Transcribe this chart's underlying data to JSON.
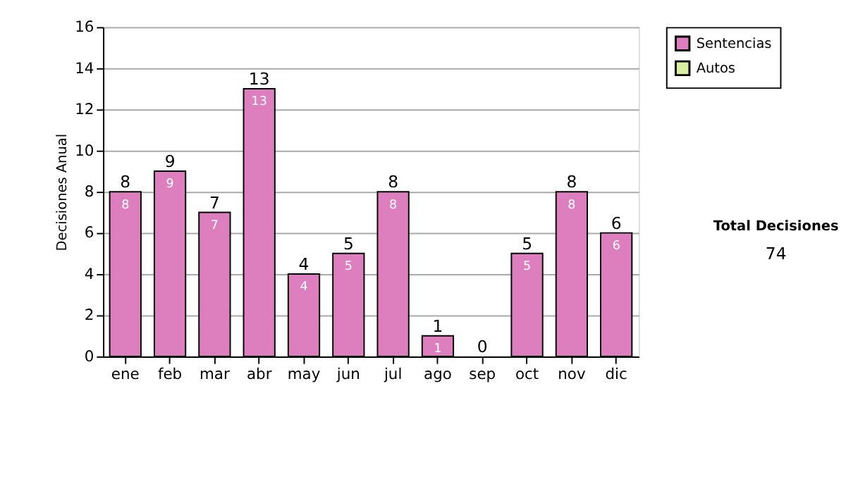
{
  "chart_data": {
    "type": "bar",
    "stacked": true,
    "ylabel": "Decisiones Anual",
    "categories": [
      "ene",
      "feb",
      "mar",
      "abr",
      "may",
      "jun",
      "jul",
      "ago",
      "sep",
      "oct",
      "nov",
      "dic"
    ],
    "series": [
      {
        "name": "Sentencias",
        "color": "#dd7fbf",
        "values": [
          8,
          9,
          7,
          13,
          4,
          5,
          8,
          1,
          0,
          5,
          8,
          6
        ],
        "value_labels": [
          "8",
          "9",
          "7",
          "13",
          "4",
          "5",
          "8",
          "1",
          null,
          "5",
          "8",
          "6"
        ]
      },
      {
        "name": "Autos",
        "color": "#d9f0a3",
        "values": [
          0,
          0,
          0,
          0,
          0,
          0,
          0,
          0,
          0,
          0,
          0,
          0
        ]
      }
    ],
    "totals": [
      "8",
      "9",
      "7",
      "13",
      "4",
      "5",
      "8",
      "1",
      "0",
      "5",
      "8",
      "6"
    ],
    "ylim": [
      0,
      16
    ],
    "yticks": [
      0,
      2,
      4,
      6,
      8,
      10,
      12,
      14,
      16
    ],
    "grid": "y",
    "legend": "right",
    "annotations": [
      "Total Decisiones",
      "74"
    ]
  }
}
